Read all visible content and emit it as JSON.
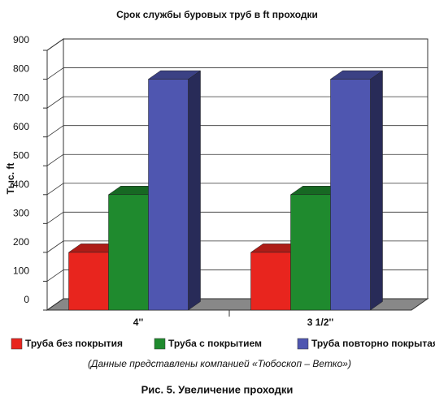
{
  "chart_data": {
    "type": "bar3d",
    "title": "Срок службы буровых труб в ft проходки",
    "y_label": "Тыс. ft",
    "categories": [
      "4''",
      "3 1/2''"
    ],
    "series": [
      {
        "name": "Труба без покрытия",
        "color": "#e8251e",
        "values": [
          200,
          200
        ]
      },
      {
        "name": "Труба с покрытием",
        "color": "#1f8a2e",
        "values": [
          400,
          400
        ]
      },
      {
        "name": "Труба повторно покрытая",
        "color": "#4f56b0",
        "values": [
          800,
          800
        ]
      }
    ],
    "ylim": [
      0,
      900
    ],
    "yticks": [
      0,
      100,
      200,
      300,
      400,
      500,
      600,
      700,
      800,
      900
    ],
    "grid": true,
    "legend": "bottom",
    "source_note": "(Данные представлены компанией «Тюбоскоп – Ветко»)",
    "figure_caption": "Рис. 5. Увеличение проходки"
  }
}
